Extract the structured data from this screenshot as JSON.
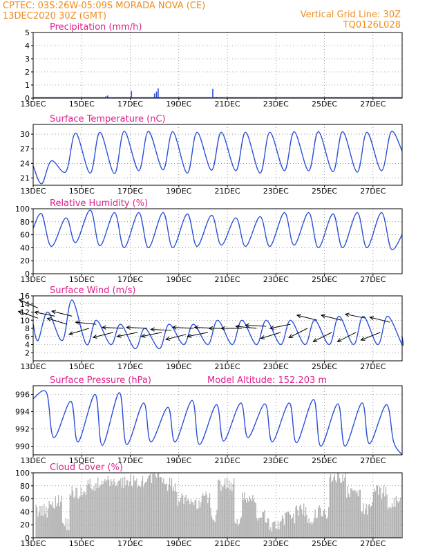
{
  "header": {
    "line1_left": "CPTEC:   03S:26W-05:09S   MORADA NOVA (CE)",
    "line2_left": "13DEC2020 30Z (GMT)",
    "line1_right": "Vertical Grid Line: 30Z",
    "line2_right": "TQ0126L028"
  },
  "model_altitude": "Model Altitude: 152.203  m",
  "colors": {
    "header": "#f08c1e",
    "panel_title": "#e0208c",
    "line": "#2a4fd8",
    "cloud": "#aaaaaa",
    "grid": "#555555"
  },
  "x_axis": {
    "day_start": 13,
    "day_end": 28.2,
    "tick_labels": [
      "13DEC",
      "15DEC",
      "17DEC",
      "19DEC",
      "21DEC",
      "23DEC",
      "25DEC",
      "27DEC"
    ],
    "tick_days": [
      13,
      15,
      17,
      19,
      21,
      23,
      25,
      27
    ]
  },
  "chart_data": [
    {
      "id": "precip",
      "type": "bar",
      "title": "Precipitation (mm/h)",
      "ylim": [
        0,
        5
      ],
      "yticks": [
        0,
        1,
        2,
        3,
        4,
        5
      ],
      "x": [
        16.0,
        16.07,
        17.05,
        18.0,
        18.08,
        18.15,
        20.4,
        20.55,
        22.0
      ],
      "values": [
        0.15,
        0.2,
        0.55,
        0.35,
        0.5,
        0.75,
        0.7,
        0.1,
        0.05
      ]
    },
    {
      "id": "temp",
      "type": "line",
      "title": "Surface Temperature (nC)",
      "ylim": [
        19.5,
        32
      ],
      "yticks": [
        21,
        24,
        27,
        30
      ],
      "daily": {
        "max": [
          24.5,
          30.2,
          30.4,
          30.6,
          30.6,
          30.5,
          30.4,
          30.4,
          30.4,
          30.4,
          30.5,
          30.5,
          30.5,
          30.4,
          30.5,
          31.0
        ],
        "min": [
          19.8,
          22.3,
          22.0,
          21.9,
          22.5,
          22.7,
          22.0,
          22.6,
          22.5,
          22.0,
          22.5,
          22.5,
          22.3,
          22.2,
          22.5,
          22.6
        ],
        "start_value": 23.5,
        "end_value": 26.5
      }
    },
    {
      "id": "rh",
      "type": "line",
      "title": "Relative Humidity (%)",
      "ylim": [
        0,
        100
      ],
      "yticks": [
        0,
        20,
        40,
        60,
        80,
        100
      ],
      "daily": {
        "max": [
          92,
          86,
          98,
          94,
          94,
          94,
          92,
          90,
          86,
          88,
          94,
          94,
          92,
          94,
          94,
          96
        ],
        "min": [
          42,
          48,
          43,
          40,
          40,
          40,
          42,
          44,
          42,
          42,
          44,
          40,
          40,
          40,
          38,
          36
        ],
        "start_value": 70,
        "end_value": 60
      }
    },
    {
      "id": "wind",
      "type": "line",
      "title": "Surface Wind (m/s)",
      "ylim": [
        0,
        16
      ],
      "yticks": [
        2,
        4,
        6,
        8,
        10,
        12,
        14,
        16
      ],
      "daily": {
        "max": [
          12,
          15,
          10,
          9,
          8,
          9,
          9,
          10,
          10,
          10,
          10,
          10,
          11,
          11,
          11,
          11
        ],
        "min": [
          5,
          5,
          4,
          4,
          3,
          3,
          4,
          4,
          4,
          4,
          4,
          4,
          4,
          4,
          4,
          4
        ],
        "start_value": 9,
        "end_value": 6
      },
      "arrows": [
        {
          "day": 13.2,
          "speed": 13,
          "u": -1.0,
          "v": 0.45
        },
        {
          "day": 13.2,
          "speed": 10.5,
          "u": -1.0,
          "v": 0.35
        },
        {
          "day": 13.9,
          "speed": 11,
          "u": -1.0,
          "v": 0.2
        },
        {
          "day": 14.4,
          "speed": 9,
          "u": -1.0,
          "v": 0.3
        },
        {
          "day": 14.6,
          "speed": 11,
          "u": -1.0,
          "v": 0.25
        },
        {
          "day": 15.3,
          "speed": 8,
          "u": -1.0,
          "v": -0.3
        },
        {
          "day": 15.6,
          "speed": 9,
          "u": -1.0,
          "v": 0.1
        },
        {
          "day": 16.3,
          "speed": 7,
          "u": -1.0,
          "v": -0.25
        },
        {
          "day": 16.7,
          "speed": 8,
          "u": -1.0,
          "v": 0.05
        },
        {
          "day": 17.3,
          "speed": 7,
          "u": -1.0,
          "v": -0.2
        },
        {
          "day": 17.7,
          "speed": 8,
          "u": -1.0,
          "v": 0.05
        },
        {
          "day": 18.3,
          "speed": 7,
          "u": -1.0,
          "v": -0.2
        },
        {
          "day": 18.7,
          "speed": 7.5,
          "u": -1.0,
          "v": 0.05
        },
        {
          "day": 19.3,
          "speed": 6.5,
          "u": -1.0,
          "v": -0.25
        },
        {
          "day": 19.6,
          "speed": 8,
          "u": -1.0,
          "v": 0.05
        },
        {
          "day": 20.2,
          "speed": 7,
          "u": -1.0,
          "v": -0.2
        },
        {
          "day": 20.5,
          "speed": 8,
          "u": -1.0,
          "v": 0.05
        },
        {
          "day": 21.1,
          "speed": 8,
          "u": -1.0,
          "v": 0.0
        },
        {
          "day": 21.6,
          "speed": 8,
          "u": -1.0,
          "v": 0.0
        },
        {
          "day": 22.2,
          "speed": 8,
          "u": -1.0,
          "v": 0.1
        },
        {
          "day": 22.6,
          "speed": 8.5,
          "u": -1.0,
          "v": 0.05
        },
        {
          "day": 23.2,
          "speed": 7,
          "u": -1.0,
          "v": -0.3
        },
        {
          "day": 23.6,
          "speed": 9,
          "u": -1.0,
          "v": -0.2
        },
        {
          "day": 24.3,
          "speed": 8,
          "u": -1.0,
          "v": -0.5
        },
        {
          "day": 24.7,
          "speed": 10,
          "u": -1.0,
          "v": 0.25
        },
        {
          "day": 25.3,
          "speed": 7,
          "u": -1.0,
          "v": -0.5
        },
        {
          "day": 25.7,
          "speed": 10,
          "u": -1.0,
          "v": 0.25
        },
        {
          "day": 26.3,
          "speed": 7,
          "u": -1.0,
          "v": -0.5
        },
        {
          "day": 26.7,
          "speed": 10.5,
          "u": -1.0,
          "v": 0.2
        },
        {
          "day": 27.3,
          "speed": 7,
          "u": -1.0,
          "v": -0.4
        },
        {
          "day": 27.7,
          "speed": 9.5,
          "u": -1.0,
          "v": 0.25
        }
      ]
    },
    {
      "id": "pres",
      "type": "line",
      "title": "Surface Pressure (hPa)",
      "ylim": [
        989,
        997
      ],
      "yticks": [
        990,
        992,
        994,
        996
      ],
      "daily": {
        "max": [
          996.2,
          995.2,
          996.0,
          996.2,
          995.0,
          994.5,
          995.3,
          994.8,
          995.0,
          994.9,
          995.0,
          995.4,
          994.9,
          995.0,
          994.8,
          995.0
        ],
        "min": [
          991.0,
          990.5,
          990.1,
          990.2,
          990.5,
          990.5,
          990.2,
          990.6,
          991.0,
          990.5,
          990.4,
          990.0,
          990.0,
          990.3,
          990.5,
          989.5
        ],
        "start_value": 995.5,
        "end_value": 989.0
      }
    },
    {
      "id": "cloud",
      "type": "bar",
      "title": "Cloud Cover (%)",
      "ylim": [
        0,
        100
      ],
      "yticks": [
        0,
        20,
        40,
        60,
        80,
        100
      ],
      "blocks": [
        {
          "from": 13.1,
          "to": 13.6,
          "level": 42
        },
        {
          "from": 13.6,
          "to": 14.2,
          "level": 55
        },
        {
          "from": 14.2,
          "to": 14.5,
          "level": 22
        },
        {
          "from": 14.5,
          "to": 15.2,
          "level": 70
        },
        {
          "from": 15.2,
          "to": 15.9,
          "level": 82
        },
        {
          "from": 15.9,
          "to": 16.8,
          "level": 85
        },
        {
          "from": 16.8,
          "to": 17.7,
          "level": 88
        },
        {
          "from": 17.7,
          "to": 18.4,
          "level": 95
        },
        {
          "from": 18.4,
          "to": 18.9,
          "level": 82
        },
        {
          "from": 18.9,
          "to": 19.4,
          "level": 60
        },
        {
          "from": 19.4,
          "to": 19.9,
          "level": 50
        },
        {
          "from": 19.9,
          "to": 20.3,
          "level": 62
        },
        {
          "from": 20.3,
          "to": 20.6,
          "level": 35
        },
        {
          "from": 20.6,
          "to": 21.3,
          "level": 82
        },
        {
          "from": 21.3,
          "to": 21.6,
          "level": 25
        },
        {
          "from": 21.6,
          "to": 22.2,
          "level": 60
        },
        {
          "from": 22.2,
          "to": 22.6,
          "level": 32
        },
        {
          "from": 22.6,
          "to": 23.2,
          "level": 20
        },
        {
          "from": 23.2,
          "to": 23.8,
          "level": 30
        },
        {
          "from": 23.8,
          "to": 24.3,
          "level": 42
        },
        {
          "from": 24.3,
          "to": 24.6,
          "level": 22
        },
        {
          "from": 24.6,
          "to": 25.2,
          "level": 40
        },
        {
          "from": 25.2,
          "to": 25.9,
          "level": 95
        },
        {
          "from": 25.9,
          "to": 26.5,
          "level": 70
        },
        {
          "from": 26.5,
          "to": 27.0,
          "level": 45
        },
        {
          "from": 27.0,
          "to": 27.6,
          "level": 70
        },
        {
          "from": 27.6,
          "to": 28.15,
          "level": 55
        }
      ]
    }
  ]
}
